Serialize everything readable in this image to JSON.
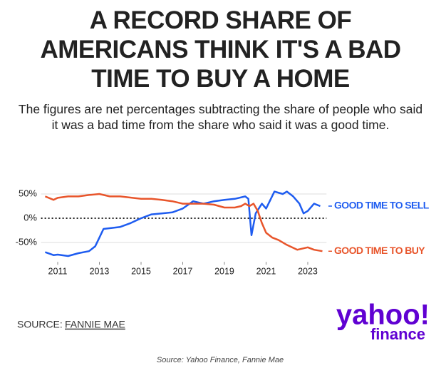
{
  "chart_data": {
    "type": "line",
    "title": "A RECORD SHARE OF AMERICANS THINK IT'S A BAD TIME TO BUY A HOME",
    "subtitle": "The figures are net percentages subtracting the share of people who said it was a bad time from the share who said it was a good time.",
    "series": [
      {
        "name": "GOOD TIME TO SELL",
        "color": "#1e5cf0",
        "x": [
          2010.4,
          2010.8,
          2011,
          2011.5,
          2012,
          2012.5,
          2012.8,
          2013,
          2013.2,
          2013.6,
          2014,
          2014.5,
          2015,
          2015.5,
          2016,
          2016.5,
          2017,
          2017.5,
          2018,
          2018.5,
          2019,
          2019.5,
          2020,
          2020.15,
          2020.3,
          2020.5,
          2020.8,
          2021,
          2021.4,
          2021.8,
          2022,
          2022.3,
          2022.6,
          2022.8,
          2023,
          2023.3,
          2023.6
        ],
        "values": [
          -70,
          -76,
          -75,
          -78,
          -72,
          -68,
          -58,
          -40,
          -22,
          -20,
          -18,
          -10,
          0,
          8,
          10,
          12,
          20,
          35,
          30,
          35,
          38,
          40,
          45,
          40,
          -35,
          10,
          30,
          20,
          55,
          50,
          55,
          45,
          30,
          10,
          15,
          30,
          25
        ]
      },
      {
        "name": "GOOD TIME TO BUY",
        "color": "#e8552b",
        "x": [
          2010.4,
          2010.8,
          2011,
          2011.5,
          2012,
          2012.5,
          2013,
          2013.5,
          2014,
          2015,
          2015.5,
          2016,
          2016.5,
          2017,
          2017.5,
          2018,
          2018.5,
          2019,
          2019.5,
          2019.8,
          2020,
          2020.2,
          2020.4,
          2020.6,
          2020.8,
          2021,
          2021.3,
          2021.6,
          2022,
          2022.5,
          2023,
          2023.3,
          2023.7
        ],
        "values": [
          45,
          38,
          42,
          45,
          45,
          48,
          50,
          45,
          45,
          40,
          40,
          38,
          35,
          30,
          30,
          30,
          28,
          22,
          22,
          25,
          30,
          25,
          30,
          15,
          -10,
          -30,
          -40,
          -45,
          -55,
          -65,
          -60,
          -65,
          -68
        ]
      }
    ],
    "xlim": [
      2010.2,
      2023.9
    ],
    "xticks": [
      2011,
      2013,
      2015,
      2017,
      2019,
      2021,
      2023
    ],
    "ylim": [
      -90,
      65
    ],
    "yticks": [
      {
        "value": 50,
        "label": "50%"
      },
      {
        "value": 0,
        "label": "0%"
      },
      {
        "value": -50,
        "label": "-50%"
      }
    ],
    "grid": true
  },
  "source": {
    "label": "SOURCE:",
    "link": "FANNIE MAE"
  },
  "logo": {
    "brand": "yahoo!",
    "product": "finance"
  },
  "caption": "Source: Yahoo Finance, Fannie Mae"
}
